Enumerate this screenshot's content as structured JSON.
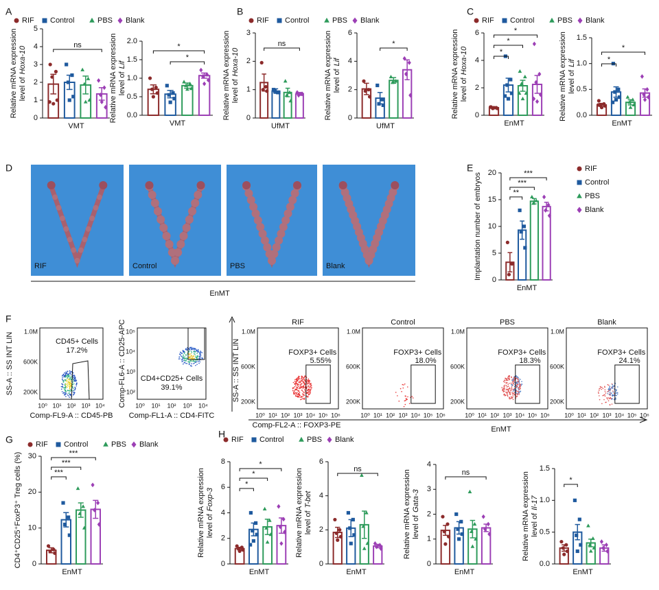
{
  "panel_labels": [
    "A",
    "B",
    "C",
    "D",
    "E",
    "F",
    "G",
    "H"
  ],
  "groups": [
    {
      "name": "RIF",
      "color": "#8c2b2b",
      "marker": "circle"
    },
    {
      "name": "Control",
      "color": "#1f5a9e",
      "marker": "square"
    },
    {
      "name": "PBS",
      "color": "#2e9b5b",
      "marker": "triangle"
    },
    {
      "name": "Blank",
      "color": "#9c3fb5",
      "marker": "diamond"
    }
  ],
  "chart_data": [
    {
      "type": "bar",
      "ylabel": [
        "Relative mRNA expression",
        "level of"
      ],
      "ylabel_gene": "Hoxa-10",
      "categories": [
        "VMT"
      ],
      "ylim": [
        0,
        5
      ],
      "yticks": [
        0,
        1,
        2,
        3,
        4,
        5
      ],
      "annotations": [
        "ns"
      ],
      "series": [
        {
          "values": [
            1.9
          ],
          "errors": [
            0.55
          ],
          "points": [
            3.0,
            2.6,
            2.3,
            1.0,
            0.8,
            0.9
          ]
        },
        {
          "values": [
            2.0
          ],
          "errors": [
            0.4
          ],
          "points": [
            3.0,
            2.4,
            2.0,
            1.2,
            1.0
          ]
        },
        {
          "values": [
            1.85
          ],
          "errors": [
            0.5
          ],
          "points": [
            2.7,
            2.2,
            1.9,
            1.0,
            0.9
          ]
        },
        {
          "values": [
            1.35
          ],
          "errors": [
            0.35
          ],
          "points": [
            2.1,
            1.7,
            1.3,
            0.6,
            0.9
          ]
        }
      ]
    },
    {
      "type": "bar",
      "ylabel": [
        "Relative mRNA expression",
        "level of"
      ],
      "ylabel_gene": "Lif",
      "categories": [
        "VMT"
      ],
      "ylim": [
        0,
        2
      ],
      "yticks": [
        {
          "value": 0,
          "label": "0.0"
        },
        0.5,
        {
          "value": 1,
          "label": "1.0"
        },
        1.5,
        {
          "value": 2,
          "label": "2.0"
        }
      ],
      "annotations": [
        "*",
        "*"
      ],
      "series": [
        {
          "values": [
            0.7
          ],
          "errors": [
            0.12
          ],
          "points": [
            1.0,
            0.75,
            0.7,
            0.6,
            0.5
          ]
        },
        {
          "values": [
            0.57
          ],
          "errors": [
            0.1
          ],
          "points": [
            0.8,
            0.6,
            0.55,
            0.45,
            0.35
          ]
        },
        {
          "values": [
            0.8
          ],
          "errors": [
            0.07
          ],
          "points": [
            0.9,
            0.85,
            0.8,
            0.72,
            0.7
          ]
        },
        {
          "values": [
            1.07
          ],
          "errors": [
            0.07
          ],
          "points": [
            1.22,
            1.1,
            1.05,
            0.95,
            0.85
          ]
        }
      ]
    },
    {
      "type": "bar",
      "ylabel": [
        "Relative mRNA expression",
        "level of"
      ],
      "ylabel_gene": "Hoxa-10",
      "categories": [
        "UfMT"
      ],
      "ylim": [
        0,
        3
      ],
      "yticks": [
        0,
        1,
        2,
        3
      ],
      "annotations": [
        "ns"
      ],
      "series": [
        {
          "values": [
            1.25
          ],
          "errors": [
            0.3
          ],
          "points": [
            1.95,
            1.1,
            1.0,
            0.95
          ]
        },
        {
          "values": [
            0.95
          ],
          "errors": [
            0.08
          ],
          "points": [
            1.0,
            0.9,
            0.95,
            0.9
          ]
        },
        {
          "values": [
            0.9
          ],
          "errors": [
            0.15
          ],
          "points": [
            1.3,
            0.9,
            0.8,
            0.6
          ]
        },
        {
          "values": [
            0.85
          ],
          "errors": [
            0.05
          ],
          "points": [
            0.9,
            0.85,
            0.8,
            0.85
          ]
        }
      ]
    },
    {
      "type": "bar",
      "ylabel": [
        "Relative mRNA expression",
        "level of"
      ],
      "ylabel_gene": "Lif",
      "categories": [
        "UfMT"
      ],
      "ylim": [
        0,
        6
      ],
      "yticks": [
        0,
        2,
        4,
        6
      ],
      "annotations": [
        "*"
      ],
      "series": [
        {
          "values": [
            2.05
          ],
          "errors": [
            0.4
          ],
          "points": [
            2.6,
            2.0,
            1.9,
            1.5
          ]
        },
        {
          "values": [
            1.4
          ],
          "errors": [
            0.4
          ],
          "points": [
            2.3,
            1.3,
            1.0,
            0.9
          ]
        },
        {
          "values": [
            2.65
          ],
          "errors": [
            0.2
          ],
          "points": [
            2.9,
            2.6,
            2.5
          ]
        },
        {
          "values": [
            3.4
          ],
          "errors": [
            0.7
          ],
          "points": [
            4.2,
            3.9,
            3.1,
            1.6
          ]
        }
      ]
    },
    {
      "type": "bar",
      "ylabel": [
        "Relative mRNA expression",
        "level of"
      ],
      "ylabel_gene": "Hoxa-10",
      "categories": [
        "EnMT"
      ],
      "ylim": [
        0,
        6
      ],
      "yticks": [
        0,
        2,
        4,
        6
      ],
      "annotations": [
        "*",
        "*",
        "*"
      ],
      "series": [
        {
          "values": [
            0.55
          ],
          "errors": [
            0.05
          ],
          "points": [
            0.6,
            0.55,
            0.5,
            0.5,
            0.55,
            0.6
          ]
        },
        {
          "values": [
            2.2
          ],
          "errors": [
            0.5
          ],
          "points": [
            4.3,
            2.6,
            2.2,
            1.6,
            1.2,
            1.4
          ]
        },
        {
          "values": [
            2.15
          ],
          "errors": [
            0.4
          ],
          "points": [
            3.2,
            2.8,
            2.3,
            1.6,
            1.2,
            1.6
          ]
        },
        {
          "values": [
            2.25
          ],
          "errors": [
            0.65
          ],
          "points": [
            5.2,
            3.0,
            2.4,
            1.5,
            1.0,
            1.2
          ]
        }
      ]
    },
    {
      "type": "bar",
      "ylabel": [
        "Relative mRNA expression",
        "level of"
      ],
      "ylabel_gene": "Lif",
      "categories": [
        "EnMT"
      ],
      "ylim": [
        0,
        1.5
      ],
      "yticks": [
        {
          "value": 0,
          "label": "0.0"
        },
        0.5,
        {
          "value": 1,
          "label": "1.0"
        },
        1.5
      ],
      "annotations": [
        "*",
        "*"
      ],
      "series": [
        {
          "values": [
            0.2
          ],
          "errors": [
            0.03
          ],
          "points": [
            0.28,
            0.22,
            0.2,
            0.18,
            0.15,
            0.2
          ]
        },
        {
          "values": [
            0.45
          ],
          "errors": [
            0.1
          ],
          "points": [
            1.0,
            0.5,
            0.45,
            0.35,
            0.3,
            0.25
          ]
        },
        {
          "values": [
            0.25
          ],
          "errors": [
            0.05
          ],
          "points": [
            0.35,
            0.3,
            0.25,
            0.2,
            0.15
          ]
        },
        {
          "values": [
            0.43
          ],
          "errors": [
            0.08
          ],
          "points": [
            0.75,
            0.5,
            0.4,
            0.35,
            0.3
          ]
        }
      ]
    },
    {
      "type": "bar",
      "ylabel": [
        "Implantation number of embryos"
      ],
      "categories": [
        "EnMT"
      ],
      "ylim": [
        0,
        20
      ],
      "yticks": [
        0,
        5,
        10,
        15,
        20
      ],
      "annotations": [
        "**",
        "***",
        "***"
      ],
      "series": [
        {
          "values": [
            3.3
          ],
          "errors": [
            1.8
          ],
          "points": [
            7,
            3,
            1
          ]
        },
        {
          "values": [
            9.3
          ],
          "errors": [
            1.7
          ],
          "points": [
            13,
            10,
            9,
            6
          ]
        },
        {
          "values": [
            14.7
          ],
          "errors": [
            0.5
          ],
          "points": [
            15.5,
            14.8,
            14.3
          ]
        },
        {
          "values": [
            13.7
          ],
          "errors": [
            0.8
          ],
          "points": [
            15.5,
            14,
            13,
            12
          ]
        }
      ]
    },
    {
      "type": "bar",
      "ylabel": [
        "CD4⁺CD25⁺FoxP3⁺ Treg cells (%)"
      ],
      "categories": [
        "EnMT"
      ],
      "ylim": [
        0,
        30
      ],
      "yticks": [
        0,
        10,
        20,
        30
      ],
      "annotations": [
        "***",
        "***",
        "***"
      ],
      "series": [
        {
          "values": [
            3.8
          ],
          "errors": [
            0.7
          ],
          "points": [
            5,
            4,
            3.5,
            3
          ]
        },
        {
          "values": [
            12.3
          ],
          "errors": [
            2
          ],
          "points": [
            17,
            13,
            11,
            8
          ]
        },
        {
          "values": [
            15
          ],
          "errors": [
            2
          ],
          "points": [
            21,
            16,
            14,
            10
          ]
        },
        {
          "values": [
            15.2
          ],
          "errors": [
            2.5
          ],
          "points": [
            22,
            17,
            15,
            11
          ]
        }
      ]
    },
    {
      "type": "bar",
      "ylabel": [
        "Relative mRNA expression",
        "level of"
      ],
      "ylabel_gene": "Foxp-3",
      "categories": [
        "EnMT"
      ],
      "ylim": [
        0,
        8
      ],
      "yticks": [
        0,
        2,
        4,
        6,
        8
      ],
      "annotations": [
        "*",
        "*",
        "*"
      ],
      "series": [
        {
          "values": [
            1.2
          ],
          "errors": [
            0.1
          ],
          "points": [
            1.4,
            1.3,
            1.2,
            1.1,
            1.0
          ]
        },
        {
          "values": [
            2.7
          ],
          "errors": [
            0.5
          ],
          "points": [
            4.0,
            3.2,
            2.6,
            2.3,
            1.8,
            1.5
          ]
        },
        {
          "values": [
            2.9
          ],
          "errors": [
            0.6
          ],
          "points": [
            4.3,
            3.4,
            2.8,
            2.3,
            1.7
          ]
        },
        {
          "values": [
            3.0
          ],
          "errors": [
            0.6
          ],
          "points": [
            4.5,
            3.5,
            2.9,
            2.5,
            1.6
          ]
        }
      ]
    },
    {
      "type": "bar",
      "ylabel": [
        "Relative mRNA expression",
        "level of"
      ],
      "ylabel_gene": "T-bet",
      "categories": [
        "EnMT"
      ],
      "ylim": [
        0,
        6
      ],
      "yticks": [
        0,
        2,
        4,
        6
      ],
      "annotations": [
        "ns"
      ],
      "series": [
        {
          "values": [
            1.85
          ],
          "errors": [
            0.3
          ],
          "points": [
            2.6,
            2.0,
            1.8,
            1.6,
            1.4
          ]
        },
        {
          "values": [
            2.1
          ],
          "errors": [
            0.5
          ],
          "points": [
            3.0,
            2.6,
            2.1,
            1.7,
            1.2
          ]
        },
        {
          "values": [
            2.3
          ],
          "errors": [
            0.8
          ],
          "points": [
            5.2,
            3.0,
            2.2,
            1.2,
            0.9
          ]
        },
        {
          "values": [
            1.05
          ],
          "errors": [
            0.1
          ],
          "points": [
            1.2,
            1.1,
            1.0,
            0.9
          ]
        }
      ]
    },
    {
      "type": "bar",
      "ylabel": [
        "Relative mRNA expression",
        "level of"
      ],
      "ylabel_gene": "Gata-3",
      "categories": [
        "EnMT"
      ],
      "ylim": [
        0,
        4
      ],
      "yticks": [
        0,
        1,
        2,
        3,
        4
      ],
      "annotations": [
        "ns"
      ],
      "series": [
        {
          "values": [
            1.35
          ],
          "errors": [
            0.2
          ],
          "points": [
            1.9,
            1.6,
            1.3,
            1.1,
            0.8
          ]
        },
        {
          "values": [
            1.45
          ],
          "errors": [
            0.25
          ],
          "points": [
            2.0,
            1.7,
            1.4,
            1.2,
            1.0
          ]
        },
        {
          "values": [
            1.4
          ],
          "errors": [
            0.35
          ],
          "points": [
            2.9,
            1.6,
            1.3,
            1.0,
            0.7
          ]
        },
        {
          "values": [
            1.45
          ],
          "errors": [
            0.15
          ],
          "points": [
            1.9,
            1.6,
            1.4,
            1.2
          ]
        }
      ]
    },
    {
      "type": "bar",
      "ylabel": [
        "Relative mRNA expression",
        "level of"
      ],
      "ylabel_gene": "Il-17",
      "categories": [
        "EnMT"
      ],
      "ylim": [
        0,
        1.5
      ],
      "yticks": [
        {
          "value": 0,
          "label": "0.0"
        },
        0.5,
        {
          "value": 1,
          "label": "1.0"
        },
        1.5
      ],
      "annotations": [
        "*"
      ],
      "series": [
        {
          "values": [
            0.25
          ],
          "errors": [
            0.05
          ],
          "points": [
            0.35,
            0.3,
            0.25,
            0.2,
            0.15
          ]
        },
        {
          "values": [
            0.5
          ],
          "errors": [
            0.12
          ],
          "points": [
            1.0,
            0.7,
            0.45,
            0.3,
            0.2
          ]
        },
        {
          "values": [
            0.33
          ],
          "errors": [
            0.06
          ],
          "points": [
            0.6,
            0.4,
            0.3,
            0.25,
            0.2
          ]
        },
        {
          "values": [
            0.25
          ],
          "errors": [
            0.05
          ],
          "points": [
            0.35,
            0.3,
            0.25,
            0.2
          ]
        }
      ]
    }
  ],
  "photos": {
    "caption": "EnMT"
  },
  "flow": {
    "yticks": [
      "1.0M",
      "600K",
      "200K"
    ],
    "xticks": [
      "10⁰",
      "10¹",
      "10²",
      "10³",
      "10⁴",
      "10⁵",
      "10⁶"
    ],
    "cd45": {
      "ylabel": "SS-A :: SS INT LIN",
      "xlabel": "Comp-FL9-A :: CD45-PB",
      "gate": "CD45+ Cells",
      "percent": "17.2%"
    },
    "cd4": {
      "ylabel": "Comp-FL6-A :: CD25-APC",
      "xlabel": "Comp-FL1-A :: CD4-FITC",
      "gate": "CD4+CD25+ Cells",
      "percent": "39.1%",
      "yticks": [
        "10⁵",
        "10⁴",
        "10³",
        "10²"
      ]
    },
    "foxp3": {
      "ylabel": "SS-A :: SS INT LIN",
      "xlabel": "Comp-FL2-A :: FOXP3-PE",
      "gate": "FOXP3+ Cells",
      "percents": [
        "5.55%",
        "18.0%",
        "18.3%",
        "24.1%"
      ],
      "caption": "EnMT"
    }
  }
}
